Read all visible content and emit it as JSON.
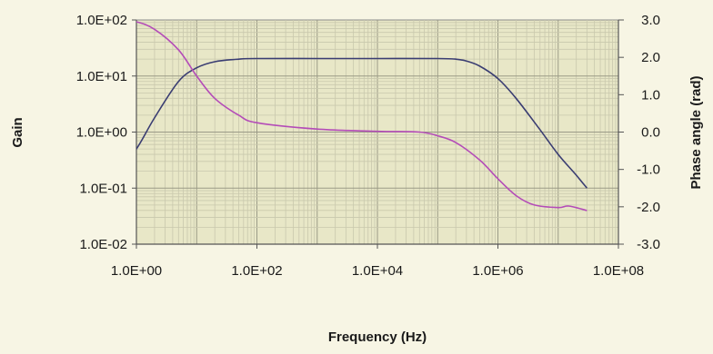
{
  "chart_data": {
    "type": "line",
    "title": "",
    "xlabel": "Frequency (Hz)",
    "ylabel_left": "Gain",
    "ylabel_right": "Phase angle (rad)",
    "x_scale": "log",
    "y_left_scale": "log",
    "xlim": [
      1,
      100000000
    ],
    "ylim_left": [
      0.01,
      100
    ],
    "ylim_right": [
      -3,
      3
    ],
    "x_ticks": [
      "1.0E+00",
      "1.0E+02",
      "1.0E+04",
      "1.0E+06",
      "1.0E+08"
    ],
    "x_tick_values": [
      1,
      100,
      10000,
      1000000,
      100000000
    ],
    "y_left_ticks": [
      "1.0E-02",
      "1.0E-01",
      "1.0E+00",
      "1.0E+01",
      "1.0E+02"
    ],
    "y_left_tick_values": [
      0.01,
      0.1,
      1,
      10,
      100
    ],
    "y_right_ticks": [
      "-3.0",
      "-2.0",
      "-1.0",
      "0.0",
      "1.0",
      "2.0",
      "3.0"
    ],
    "y_right_tick_values": [
      -3,
      -2,
      -1,
      0,
      1,
      2,
      3
    ],
    "grid": true,
    "legend": "none",
    "series": [
      {
        "axis": "left",
        "color": "#3a3d72",
        "points": [
          [
            0.5,
            0.2
          ],
          [
            1,
            0.5
          ],
          [
            2,
            1.8
          ],
          [
            5,
            8
          ],
          [
            10,
            14
          ],
          [
            20,
            18
          ],
          [
            50,
            20
          ],
          [
            100,
            20.5
          ],
          [
            1000,
            20.5
          ],
          [
            10000,
            20.5
          ],
          [
            100000,
            20.5
          ],
          [
            200000,
            20
          ],
          [
            300000,
            18.5
          ],
          [
            500000,
            15
          ],
          [
            1000000,
            9
          ],
          [
            2000000,
            4
          ],
          [
            5000000,
            1.1
          ],
          [
            10000000,
            0.4
          ],
          [
            20000000,
            0.17
          ],
          [
            30000000,
            0.1
          ]
        ]
      },
      {
        "axis": "right",
        "color": "#b44cb8",
        "points": [
          [
            0.5,
            3.0
          ],
          [
            1,
            2.95
          ],
          [
            2,
            2.75
          ],
          [
            5,
            2.2
          ],
          [
            10,
            1.5
          ],
          [
            20,
            0.9
          ],
          [
            50,
            0.45
          ],
          [
            100,
            0.25
          ],
          [
            1000,
            0.08
          ],
          [
            10000,
            0.02
          ],
          [
            50000,
            0.0
          ],
          [
            100000,
            -0.1
          ],
          [
            200000,
            -0.28
          ],
          [
            500000,
            -0.75
          ],
          [
            1000000,
            -1.25
          ],
          [
            2000000,
            -1.7
          ],
          [
            4000000,
            -1.95
          ],
          [
            10000000,
            -2.02
          ],
          [
            15000000,
            -1.98
          ],
          [
            30000000,
            -2.1
          ]
        ]
      }
    ]
  }
}
